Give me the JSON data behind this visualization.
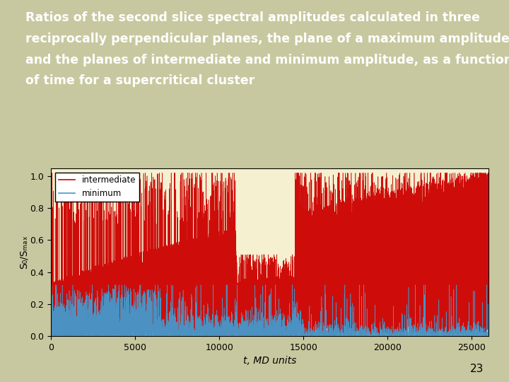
{
  "title_line1": "Ratios of the second slice spectral amplitudes calculated in three",
  "title_line2": "reciprocally perpendicular planes, the plane of a maximum amplitude",
  "title_line3": "and the planes of intermediate and minimum amplitude, as a function",
  "title_line4": "of time for a supercritical cluster",
  "xlabel": "t, MD units",
  "ylabel": "S₀/Sₘₐₓ",
  "xlim": [
    0,
    26000
  ],
  "ylim": [
    0.0,
    1.05
  ],
  "xticks": [
    0,
    5000,
    10000,
    15000,
    20000,
    25000
  ],
  "yticks": [
    0.0,
    0.2,
    0.4,
    0.6,
    0.8,
    1.0
  ],
  "plot_bg_color": "#f5f0d0",
  "slide_bg_color": "#c8c8a0",
  "red_color": "#cc0000",
  "blue_color": "#4499cc",
  "title_color": "#ffffff",
  "title_fontsize": 12.5,
  "axis_fontsize": 10,
  "tick_fontsize": 9,
  "legend_labels": [
    "intermediate",
    "minimum"
  ],
  "n_points": 26000,
  "slide_number": "23"
}
